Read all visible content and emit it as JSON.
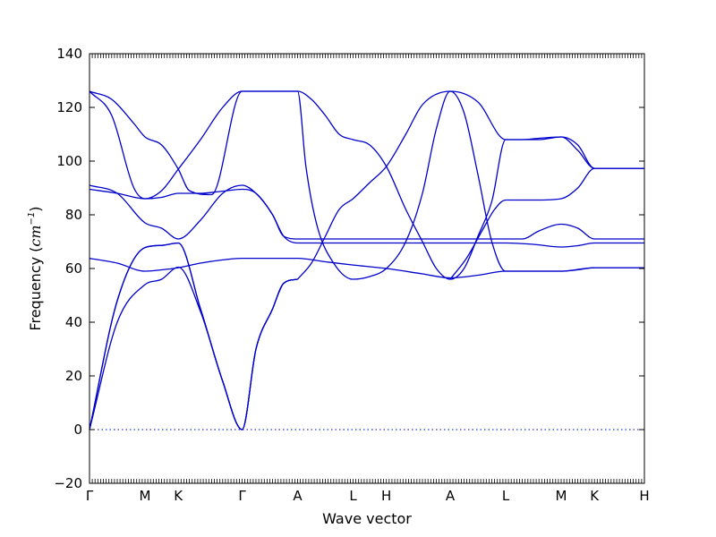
{
  "chart_data": {
    "type": "line",
    "title": "",
    "xlabel": "Wave vector",
    "ylabel": "Frequency ($cm^{-1}$)",
    "ylabel_text": "Frequency (",
    "ylabel_unit": "cm",
    "ylabel_exp": "−1",
    "ylabel_close": ")",
    "ylim": [
      -20,
      140
    ],
    "yticks": [
      -20,
      0,
      20,
      40,
      60,
      80,
      100,
      120,
      140
    ],
    "xlim": [
      0,
      10
    ],
    "xtick_positions": [
      0,
      1,
      1.6,
      2.75,
      3.75,
      4.75,
      5.35,
      6.5,
      7.5,
      8.5,
      9.1,
      10
    ],
    "xtick_labels": [
      "Γ",
      "M",
      "K",
      "Γ",
      "A",
      "L",
      "H",
      "A",
      "L",
      "M",
      "K",
      "H"
    ],
    "zero_line": true,
    "series": [
      {
        "x": [
          0,
          0.5,
          1,
          1.3,
          1.6,
          2.0,
          2.4,
          2.75,
          3.0,
          3.3,
          3.5,
          3.75
        ],
        "y": [
          0,
          48,
          67.8,
          68.6,
          69.5,
          45,
          18,
          0,
          30,
          45,
          54.5,
          56
        ]
      },
      {
        "x": [
          0,
          0.5,
          1,
          1.3,
          1.6,
          2.0,
          2.4,
          2.75,
          3.0,
          3.3,
          3.5,
          3.75
        ],
        "y": [
          0,
          40,
          54,
          56,
          60.5,
          44,
          18,
          0,
          30,
          45,
          54.5,
          56
        ]
      },
      {
        "x": [
          0,
          0.5,
          1,
          1.3,
          1.6,
          2.0,
          2.4,
          2.75,
          3.0,
          3.3,
          3.5,
          3.75
        ],
        "y": [
          0,
          48,
          67.8,
          68.6,
          69.5,
          45,
          18,
          0,
          30,
          45,
          54.5,
          56
        ]
      },
      {
        "x": [
          0,
          0.5,
          1,
          1.3,
          1.6,
          2.0,
          2.4,
          2.75,
          3.0,
          3.3,
          3.5,
          3.75,
          4.25,
          4.75,
          5.35,
          6.0,
          6.5,
          7.0,
          7.5,
          8.0,
          8.5,
          9.1,
          10
        ],
        "y": [
          63.8,
          62,
          59,
          59.5,
          60.3,
          62,
          63.2,
          63.8,
          63.8,
          63.8,
          63.8,
          63.8,
          62.5,
          61.3,
          60,
          58,
          56.5,
          57.5,
          59,
          59,
          59,
          60.3,
          60.3
        ]
      },
      {
        "x": [
          0,
          0.5,
          1,
          1.3,
          1.6,
          2.0,
          2.4,
          2.75,
          3.0,
          3.3,
          3.5,
          3.75,
          4.0,
          4.25,
          4.5,
          4.75,
          5.05,
          5.35,
          6.0,
          6.5,
          7.0,
          7.5,
          7.8,
          8.1,
          8.5,
          8.8,
          9.1,
          10
        ],
        "y": [
          91,
          88,
          77,
          75,
          71,
          78,
          88,
          91,
          88,
          80,
          72,
          71,
          71,
          71,
          71,
          71,
          71,
          71,
          71,
          71,
          71,
          71,
          71,
          74,
          76.5,
          75,
          71,
          71
        ]
      },
      {
        "x": [
          0,
          0.5,
          1,
          1.3,
          1.6,
          2.0,
          2.4,
          2.75,
          3.0,
          3.3,
          3.5,
          3.75,
          4.25,
          4.75,
          5.35,
          6.0,
          6.5,
          7.0,
          7.5,
          8.0,
          8.5,
          8.8,
          9.1,
          10
        ],
        "y": [
          89.5,
          88,
          86,
          86.5,
          88,
          88,
          88.8,
          89.5,
          88,
          80,
          72,
          69.5,
          69.5,
          69.5,
          69.5,
          69.5,
          69.5,
          69.5,
          69.5,
          69,
          68,
          68.5,
          69.5,
          69.5
        ]
      },
      {
        "x": [
          0,
          0.4,
          0.8,
          1,
          1.3,
          1.6,
          1.8,
          2.2,
          2.75,
          3.75,
          4.0,
          4.25,
          4.5,
          4.75,
          5.05,
          5.35,
          5.7,
          6.0,
          6.25,
          6.5,
          6.75,
          7.0,
          7.25,
          7.5,
          7.8,
          8.1,
          8.5,
          8.8,
          9.1,
          10
        ],
        "y": [
          126,
          123,
          114,
          109,
          106,
          97,
          89,
          87.5,
          126,
          126,
          123,
          117,
          110,
          108,
          106,
          98,
          82,
          70,
          60,
          56,
          60,
          72,
          85,
          108,
          108,
          108.5,
          109,
          104,
          97.3,
          97.3
        ]
      },
      {
        "x": [
          0,
          0.4,
          0.8,
          1,
          1.3,
          1.6,
          2.0,
          2.4,
          2.75,
          3.75,
          3.9,
          4.1,
          4.4,
          4.75,
          5.05,
          5.35,
          5.7,
          6.0,
          6.25,
          6.5,
          6.75,
          7.0,
          7.25,
          7.5,
          7.8,
          8.1,
          8.5,
          8.8,
          9.1,
          10
        ],
        "y": [
          126,
          117,
          90,
          86,
          89,
          97,
          108,
          120,
          126,
          126,
          98,
          76,
          62,
          56,
          57,
          60,
          70,
          88,
          112,
          126,
          118,
          95,
          70,
          59,
          59,
          59,
          59,
          59.5,
          60.3,
          60.3
        ]
      },
      {
        "x": [
          3.75,
          4.0,
          4.25,
          4.5,
          4.75,
          5.05,
          5.35,
          5.7,
          6.0,
          6.5,
          7.0,
          7.5,
          7.8,
          8.1,
          8.5,
          8.8,
          9.1,
          10
        ],
        "y": [
          56,
          62,
          72,
          82,
          86,
          92,
          98,
          110,
          121,
          126,
          122,
          108,
          108,
          108,
          109,
          106,
          97.3,
          97.3
        ]
      },
      {
        "x": [
          6.5,
          6.8,
          7.1,
          7.3,
          7.5,
          7.8,
          8.1,
          8.5,
          8.8,
          9.1,
          10
        ],
        "y": [
          56,
          64,
          75,
          82,
          85.5,
          85.5,
          85.5,
          86,
          90,
          97.3,
          97.3
        ]
      }
    ]
  }
}
